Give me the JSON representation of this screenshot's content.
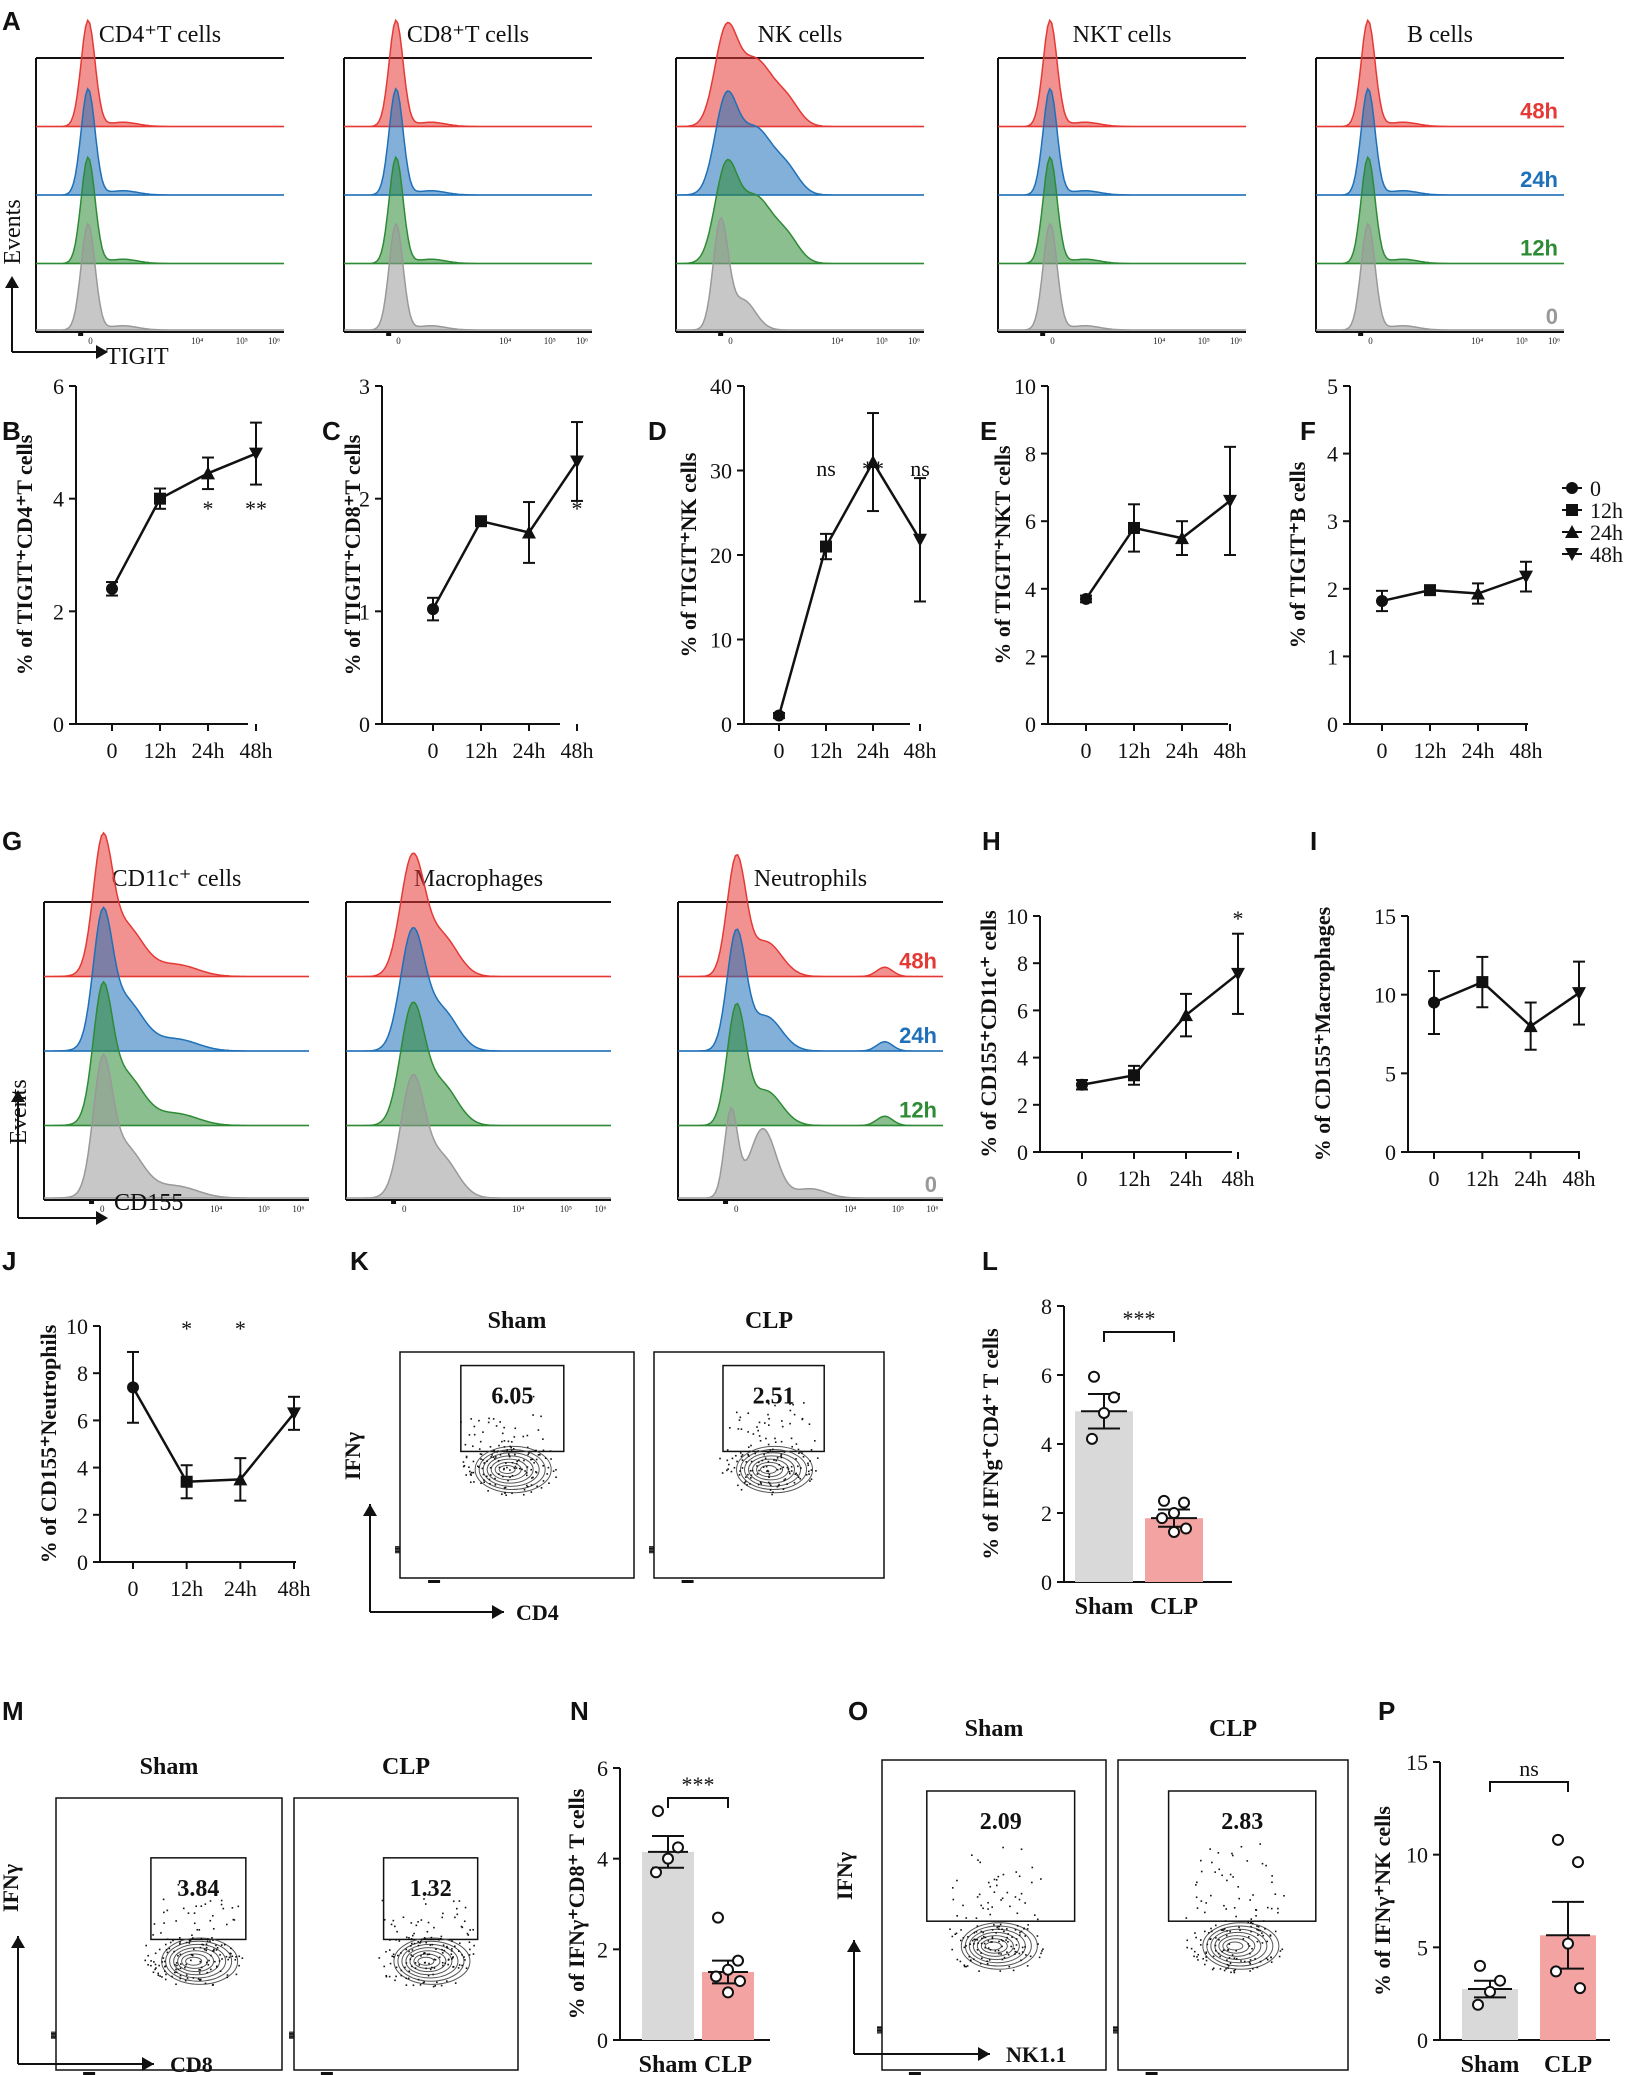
{
  "colors": {
    "h48": "#e53935",
    "h24": "#1e70b8",
    "h12": "#2e8b35",
    "h0": "#999999",
    "bar_sham": "#d9d9d9",
    "bar_clp": "#f4a3a3"
  },
  "chart_data": [
    {
      "id": "A",
      "type": "histogram_overlay",
      "x_label": "TIGIT",
      "y_label": "Events",
      "panels": [
        "CD4⁺T cells",
        "CD8⁺T cells",
        "NK cells",
        "NKT cells",
        "B cells"
      ],
      "time_labels": [
        "48h",
        "24h",
        "12h",
        "0"
      ],
      "ticks": [
        "0",
        "10⁴",
        "10⁵",
        "10⁶"
      ]
    },
    {
      "id": "B",
      "type": "line",
      "ylabel": "% of TIGIT⁺CD4⁺T cells",
      "categories": [
        "0",
        "12h",
        "24h",
        "48h"
      ],
      "values": [
        2.4,
        4.0,
        4.45,
        4.8
      ],
      "errors": [
        0.12,
        0.18,
        0.28,
        0.55
      ],
      "ylim": [
        0,
        6
      ],
      "yticks": [
        0,
        2,
        4,
        6
      ],
      "sig": [
        "",
        "",
        "*",
        "**"
      ]
    },
    {
      "id": "C",
      "type": "line",
      "ylabel": "% of TIGIT⁺CD8⁺T cells",
      "categories": [
        "0",
        "12h",
        "24h",
        "48h"
      ],
      "values": [
        1.02,
        1.8,
        1.7,
        2.33
      ],
      "errors": [
        0.1,
        0.04,
        0.27,
        0.35
      ],
      "ylim": [
        0,
        3
      ],
      "yticks": [
        0,
        1,
        2,
        3
      ],
      "sig": [
        "",
        "",
        "",
        "*"
      ]
    },
    {
      "id": "D",
      "type": "line",
      "ylabel": "% of TIGIT⁺NK cells",
      "categories": [
        "0",
        "12h",
        "24h",
        "48h"
      ],
      "values": [
        1.0,
        21.0,
        31.0,
        21.8
      ],
      "errors": [
        0.3,
        1.5,
        5.8,
        7.3
      ],
      "ylim": [
        0,
        40
      ],
      "yticks": [
        0,
        10,
        20,
        30,
        40
      ],
      "sig": [
        "",
        "ns",
        "**",
        "ns"
      ]
    },
    {
      "id": "E",
      "type": "line",
      "ylabel": "% of TIGIT⁺NKT cells",
      "categories": [
        "0",
        "12h",
        "24h",
        "48h"
      ],
      "values": [
        3.7,
        5.8,
        5.5,
        6.6
      ],
      "errors": [
        0.1,
        0.7,
        0.5,
        1.6
      ],
      "ylim": [
        0,
        10
      ],
      "yticks": [
        0,
        2,
        4,
        6,
        8,
        10
      ],
      "sig": [
        "",
        "",
        "",
        ""
      ]
    },
    {
      "id": "F",
      "type": "line",
      "ylabel": "% of TIGIT⁺B cells",
      "categories": [
        "0",
        "12h",
        "24h",
        "48h"
      ],
      "values": [
        1.82,
        1.98,
        1.93,
        2.18
      ],
      "errors": [
        0.15,
        0.05,
        0.15,
        0.22
      ],
      "ylim": [
        0,
        5
      ],
      "yticks": [
        0,
        1,
        2,
        3,
        4,
        5
      ],
      "sig": [
        "",
        "",
        "",
        ""
      ]
    },
    {
      "id": "legend",
      "type": "legend",
      "entries": [
        {
          "label": "0",
          "marker": "circle"
        },
        {
          "label": "12h",
          "marker": "square"
        },
        {
          "label": "24h",
          "marker": "triangle-up"
        },
        {
          "label": "48h",
          "marker": "triangle-down"
        }
      ]
    },
    {
      "id": "G",
      "type": "histogram_overlay",
      "x_label": "CD155",
      "y_label": "Events",
      "panels": [
        "CD11c⁺ cells",
        "Macrophages",
        "Neutrophils"
      ],
      "time_labels": [
        "48h",
        "24h",
        "12h",
        "0"
      ],
      "ticks": [
        "0",
        "10⁴",
        "10⁵",
        "10⁶"
      ]
    },
    {
      "id": "H",
      "type": "line",
      "ylabel": "% of CD155⁺CD11c⁺ cells",
      "categories": [
        "0",
        "12h",
        "24h",
        "48h"
      ],
      "values": [
        2.85,
        3.25,
        5.8,
        7.55
      ],
      "errors": [
        0.2,
        0.4,
        0.9,
        1.7
      ],
      "ylim": [
        0,
        10
      ],
      "yticks": [
        0,
        2,
        4,
        6,
        8,
        10
      ],
      "sig": [
        "",
        "",
        "",
        "*"
      ]
    },
    {
      "id": "I",
      "type": "line",
      "ylabel": "% of CD155⁺Macrophages",
      "categories": [
        "0",
        "12h",
        "24h",
        "48h"
      ],
      "values": [
        9.5,
        10.8,
        8.0,
        10.1
      ],
      "errors": [
        2.0,
        1.6,
        1.5,
        2.0
      ],
      "ylim": [
        0,
        15
      ],
      "yticks": [
        0,
        5,
        10,
        15
      ],
      "sig": [
        "",
        "",
        "",
        ""
      ]
    },
    {
      "id": "J",
      "type": "line",
      "ylabel": "% of CD155⁺Neutrophils",
      "categories": [
        "0",
        "12h",
        "24h",
        "48h"
      ],
      "values": [
        7.4,
        3.4,
        3.5,
        6.3
      ],
      "errors": [
        1.5,
        0.7,
        0.9,
        0.7
      ],
      "ylim": [
        0,
        10
      ],
      "yticks": [
        0,
        2,
        4,
        6,
        8,
        10
      ],
      "sig": [
        "",
        "*",
        "*",
        ""
      ]
    },
    {
      "id": "K",
      "type": "flow_contour",
      "x_label": "CD4",
      "y_label": "IFNγ",
      "groups": [
        {
          "name": "Sham",
          "gate_value": "6.05"
        },
        {
          "name": "CLP",
          "gate_value": "2.51"
        }
      ]
    },
    {
      "id": "L",
      "type": "bar",
      "ylabel": "% of IFNg⁺CD4⁺ T cells",
      "categories": [
        "Sham",
        "CLP"
      ],
      "values": [
        4.95,
        1.85
      ],
      "errors": [
        0.5,
        0.25
      ],
      "points": [
        [
          5.95,
          5.35,
          4.9,
          4.15
        ],
        [
          2.35,
          2.3,
          2.0,
          1.85,
          1.55,
          1.45
        ]
      ],
      "ylim": [
        0,
        8
      ],
      "yticks": [
        0,
        2,
        4,
        6,
        8
      ],
      "sig": "***"
    },
    {
      "id": "M",
      "type": "flow_contour",
      "x_label": "CD8",
      "y_label": "IFNγ",
      "groups": [
        {
          "name": "Sham",
          "gate_value": "3.84"
        },
        {
          "name": "CLP",
          "gate_value": "1.32"
        }
      ]
    },
    {
      "id": "N",
      "type": "bar",
      "ylabel": "% of IFNγ⁺CD8⁺ T cells",
      "categories": [
        "Sham",
        "CLP"
      ],
      "values": [
        4.15,
        1.5
      ],
      "errors": [
        0.35,
        0.25
      ],
      "points": [
        [
          5.05,
          4.25,
          4.0,
          3.7
        ],
        [
          2.7,
          1.75,
          1.55,
          1.4,
          1.3,
          1.05
        ]
      ],
      "ylim": [
        0,
        6
      ],
      "yticks": [
        0,
        2,
        4,
        6
      ],
      "sig": "***"
    },
    {
      "id": "O",
      "type": "flow_contour",
      "x_label": "NK1.1",
      "y_label": "IFNγ",
      "groups": [
        {
          "name": "Sham",
          "gate_value": "2.09"
        },
        {
          "name": "CLP",
          "gate_value": "2.83"
        }
      ]
    },
    {
      "id": "P",
      "type": "bar",
      "ylabel": "% of IFNγ⁺NK cells",
      "categories": [
        "Sham",
        "CLP"
      ],
      "values": [
        2.75,
        5.65
      ],
      "errors": [
        0.45,
        1.8
      ],
      "points": [
        [
          4.0,
          3.2,
          2.6,
          1.9
        ],
        [
          10.8,
          9.6,
          5.2,
          3.7,
          2.8
        ]
      ],
      "ylim": [
        0,
        15
      ],
      "yticks": [
        0,
        5,
        10,
        15
      ],
      "sig": "ns"
    }
  ]
}
